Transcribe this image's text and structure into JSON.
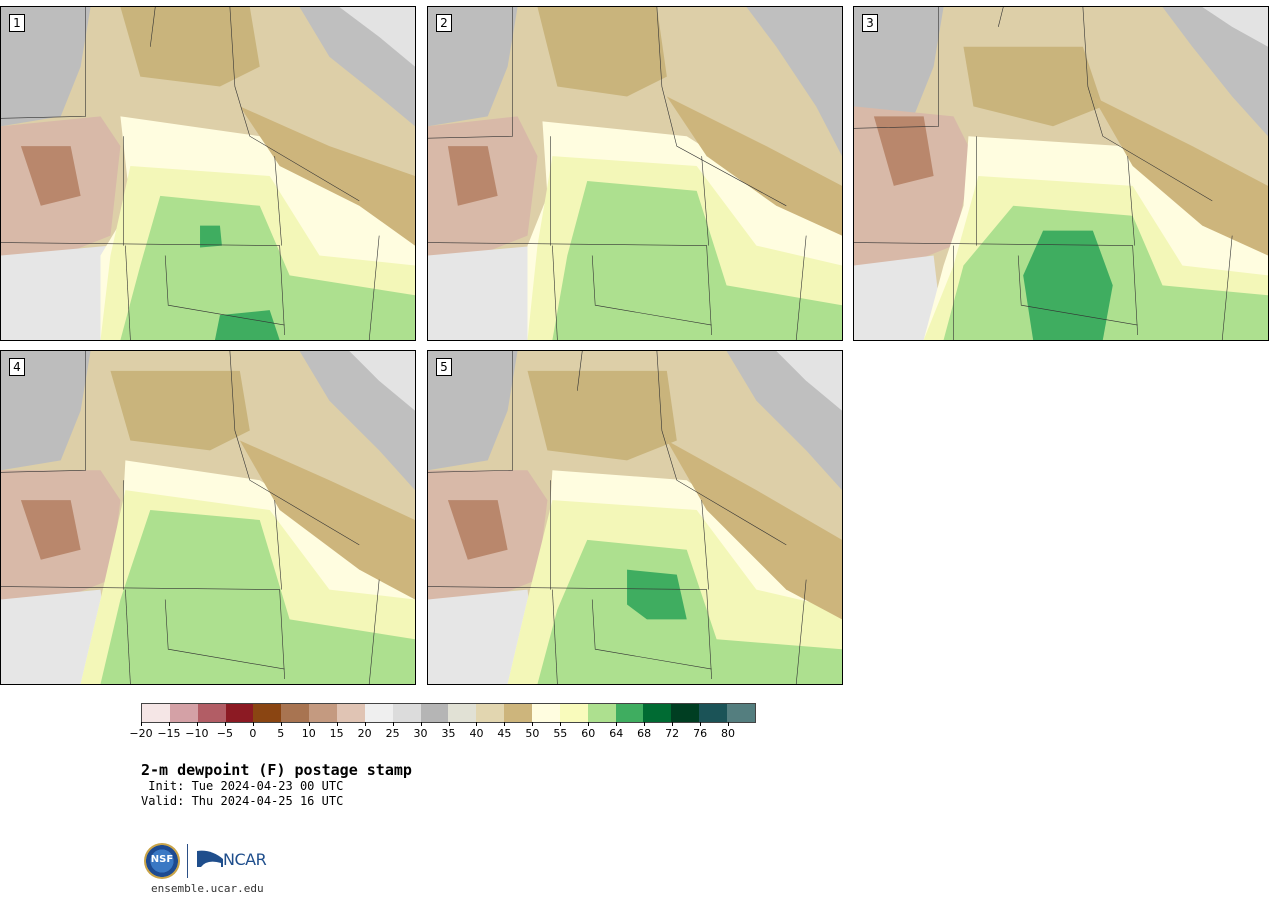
{
  "title": "2-m dewpoint (F) postage stamp",
  "init_line": " Init: Tue 2024-04-23 00 UTC",
  "valid_line": "Valid: Thu 2024-04-25 16 UTC",
  "url": "ensemble.ucar.edu",
  "logos": {
    "nsf": "NSF",
    "ncar": "NCAR"
  },
  "panels": [
    {
      "label": "1"
    },
    {
      "label": "2"
    },
    {
      "label": "3"
    },
    {
      "label": "4"
    },
    {
      "label": "5"
    }
  ],
  "colorbar": {
    "colors": [
      "#f5e6e6",
      "#d4a1a6",
      "#b25d65",
      "#8c1a23",
      "#8a4512",
      "#a87451",
      "#c49a80",
      "#e0c4b4",
      "#efefef",
      "#dcdcdc",
      "#b5b5b5",
      "#e1e1d5",
      "#e2d6b0",
      "#cdb57c",
      "#fffde0",
      "#f9fbbc",
      "#ade08f",
      "#3fad60",
      "#006b33",
      "#003e22",
      "#1b5357",
      "#547e7f"
    ],
    "tick_labels": [
      "−20",
      "−15",
      "−10",
      "−5",
      "0",
      "5",
      "10",
      "15",
      "20",
      "25",
      "30",
      "35",
      "40",
      "45",
      "50",
      "55",
      "60",
      "64",
      "68",
      "72",
      "76",
      "80"
    ]
  }
}
